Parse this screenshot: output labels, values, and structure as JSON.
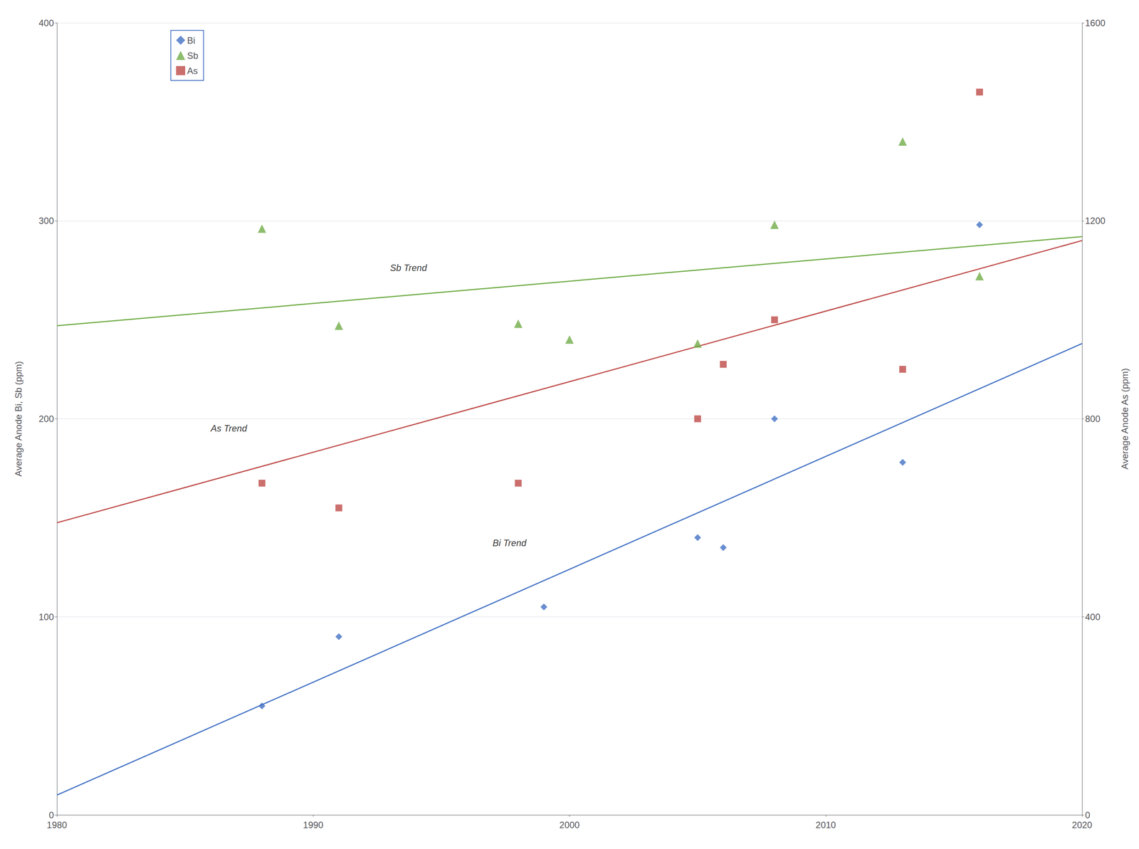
{
  "chart_data": {
    "type": "scatter",
    "ylabel": "Average Anode Bi, Sb (ppm)",
    "y2label": "Average Anode As (ppm)",
    "xlim": [
      1980,
      2020
    ],
    "xticks": [
      1980,
      1990,
      2000,
      2010,
      2020
    ],
    "ylim": [
      0,
      400
    ],
    "yticks": [
      0,
      100,
      200,
      300,
      400
    ],
    "y2lim": [
      0,
      1600
    ],
    "y2ticks": [
      0,
      400,
      800,
      1200,
      1600
    ],
    "grid": true,
    "legend": "upper left",
    "series": [
      {
        "name": "Bi",
        "type": "scatter",
        "marker": "diamond",
        "color": "#4472C4",
        "x": [
          1988,
          1991,
          1999,
          2005,
          2006,
          2008,
          2013,
          2016
        ],
        "values": [
          55,
          90,
          105,
          140,
          135,
          200,
          178,
          298
        ]
      },
      {
        "name": "Sb",
        "type": "scatter",
        "marker": "triangle",
        "color": "#70AD47",
        "x": [
          1988,
          1991,
          1998,
          2000,
          2005,
          2008,
          2013,
          2016
        ],
        "values": [
          296,
          247,
          248,
          240,
          238,
          298,
          340,
          272
        ]
      },
      {
        "name": "As",
        "type": "scatter",
        "marker": "square",
        "color": "#BE4B48",
        "axis": "y2",
        "x": [
          1988,
          1991,
          1998,
          2005,
          2006,
          2008,
          2013,
          2016
        ],
        "values": [
          670,
          620,
          670,
          800,
          910,
          1000,
          900,
          1460
        ]
      },
      {
        "type": "line",
        "color": "#4472C4",
        "x": [
          1980,
          2020
        ],
        "values": [
          10,
          238
        ]
      },
      {
        "type": "line",
        "color": "#70AD47",
        "x": [
          1980,
          2020
        ],
        "values": [
          247,
          292
        ]
      },
      {
        "type": "line",
        "color": "#BE4B48",
        "axis": "y2",
        "x": [
          1980,
          2020
        ],
        "values": [
          590,
          1160
        ]
      }
    ],
    "annotations": [
      {
        "text": "Sb Trend",
        "x": 1993,
        "y": 274
      },
      {
        "text": "As Trend",
        "x": 1986,
        "y": 193
      },
      {
        "text": "Bi Trend",
        "x": 1997,
        "y": 135
      }
    ]
  }
}
